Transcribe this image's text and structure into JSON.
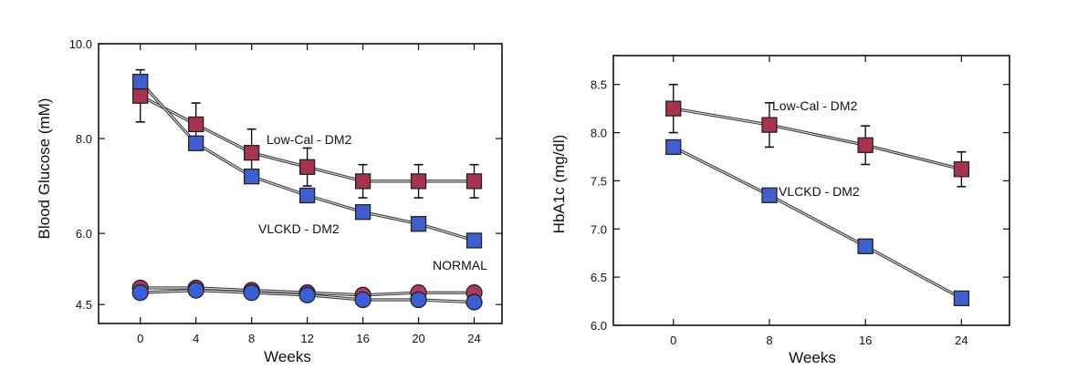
{
  "chart_data": [
    {
      "type": "line",
      "xlabel": "Weeks",
      "ylabel": "Blood Glucose (mM)",
      "x": [
        0,
        4,
        8,
        12,
        16,
        20,
        24
      ],
      "xlim": [
        -3,
        26
      ],
      "ylim": [
        4.1,
        10.0
      ],
      "xticks": [
        "0",
        "4",
        "8",
        "12",
        "16",
        "20",
        "24"
      ],
      "yticks": [
        {
          "value": 4.5,
          "label": "4.5"
        },
        {
          "value": 6.0,
          "label": "6.0"
        },
        {
          "value": 8.0,
          "label": "8.0"
        },
        {
          "value": 10.0,
          "label": "10.0"
        }
      ],
      "grid": false,
      "series": [
        {
          "name": "Low-Cal - DM2",
          "marker": "square",
          "color": "#a8324f",
          "values": [
            8.9,
            8.3,
            7.7,
            7.4,
            7.1,
            7.1,
            7.1
          ],
          "error": [
            0.55,
            0.45,
            0.5,
            0.4,
            0.35,
            0.35,
            0.35
          ]
        },
        {
          "name": "VLCKD - DM2",
          "marker": "square",
          "color": "#3d5fd0",
          "values": [
            9.2,
            7.9,
            7.2,
            6.8,
            6.45,
            6.2,
            5.85
          ],
          "error": [
            0,
            0,
            0,
            0,
            0,
            0,
            0
          ]
        },
        {
          "name": "NORMAL",
          "marker": "circle",
          "color": "#b03a5a",
          "values": [
            4.85,
            4.85,
            4.8,
            4.75,
            4.7,
            4.75,
            4.75
          ],
          "error": [
            0,
            0,
            0,
            0,
            0,
            0,
            0
          ]
        },
        {
          "name": "NORMAL",
          "marker": "circle",
          "color": "#3a5fd6",
          "values": [
            4.75,
            4.8,
            4.75,
            4.7,
            4.6,
            4.6,
            4.55
          ],
          "error": [
            0,
            0,
            0,
            0,
            0,
            0,
            0
          ]
        }
      ],
      "annotations": [
        "Low-Cal - DM2",
        "VLCKD - DM2",
        "NORMAL"
      ]
    },
    {
      "type": "line",
      "xlabel": "Weeks",
      "ylabel": "HbA1c (mg/dl)",
      "x": [
        0,
        8,
        16,
        24
      ],
      "xlim": [
        -5,
        28
      ],
      "ylim": [
        6.0,
        8.8
      ],
      "xticks": [
        "0",
        "8",
        "16",
        "24"
      ],
      "yticks": [
        {
          "value": 6.0,
          "label": "6.0"
        },
        {
          "value": 6.5,
          "label": "6.5"
        },
        {
          "value": 7.0,
          "label": "7.0"
        },
        {
          "value": 7.5,
          "label": "7.5"
        },
        {
          "value": 8.0,
          "label": "8.0"
        },
        {
          "value": 8.5,
          "label": "8.5"
        }
      ],
      "grid": false,
      "series": [
        {
          "name": "Low-Cal - DM2",
          "marker": "square",
          "color": "#a8324f",
          "values": [
            8.25,
            8.08,
            7.87,
            7.62
          ],
          "error": [
            0.25,
            0.23,
            0.2,
            0.18
          ]
        },
        {
          "name": "VLCKD - DM2",
          "marker": "square",
          "color": "#3d5fd0",
          "values": [
            7.85,
            7.35,
            6.82,
            6.28
          ],
          "error": [
            0,
            0,
            0,
            0
          ]
        }
      ],
      "annotations": [
        "Low-Cal - DM2",
        "VLCKD - DM2"
      ]
    }
  ]
}
